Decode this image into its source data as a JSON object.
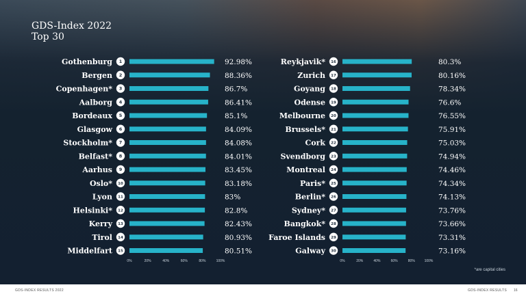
{
  "header": {
    "title": "GDS-Index 2022",
    "subtitle": "Top 30"
  },
  "footnote": "*are capital cities",
  "footer": {
    "left": "GDS-INDEX RESULTS 2022",
    "right": "GDS-INDEX RESULTS",
    "page": "16"
  },
  "colors": {
    "bar": "#27b3c9",
    "badge": "#ffffff",
    "badge_text": "#1c2b3a",
    "label": "#ffffff"
  },
  "chart_data": [
    {
      "type": "bar",
      "orientation": "horizontal",
      "xlim": [
        0,
        100
      ],
      "ticks": [
        "0%",
        "20%",
        "40%",
        "60%",
        "80%",
        "100%"
      ],
      "categories": [
        "Gothenburg",
        "Bergen",
        "Copenhagen*",
        "Aalborg",
        "Bordeaux",
        "Glasgow",
        "Stockholm*",
        "Belfast*",
        "Aarhus",
        "Oslo*",
        "Lyon",
        "Helsinki*",
        "Kerry",
        "Tirol",
        "Middelfart"
      ],
      "ranks": [
        "1",
        "2",
        "3",
        "4",
        "5",
        "6",
        "7",
        "8",
        "9",
        "10",
        "11",
        "12",
        "13",
        "14",
        "15"
      ],
      "values": [
        92.98,
        88.36,
        86.7,
        86.41,
        85.1,
        84.09,
        84.08,
        84.01,
        83.45,
        83.18,
        83,
        82.8,
        82.43,
        80.93,
        80.51
      ],
      "value_labels": [
        "92.98%",
        "88.36%",
        "86.7%",
        "86.41%",
        "85.1%",
        "84.09%",
        "84.08%",
        "84.01%",
        "83.45%",
        "83.18%",
        "83%",
        "82.8%",
        "82.43%",
        "80.93%",
        "80.51%"
      ]
    },
    {
      "type": "bar",
      "orientation": "horizontal",
      "xlim": [
        0,
        100
      ],
      "ticks": [
        "0%",
        "20%",
        "40%",
        "60%",
        "80%",
        "100%"
      ],
      "categories": [
        "Reykjavik*",
        "Zurich",
        "Goyang",
        "Odense",
        "Melbourne",
        "Brussels*",
        "Cork",
        "Svendborg",
        "Montreal",
        "Paris*",
        "Berlin*",
        "Sydney*",
        "Bangkok*",
        "Faroe Islands",
        "Galway"
      ],
      "ranks": [
        "16",
        "17",
        "18",
        "19",
        "20",
        "21",
        "22",
        "23",
        "24",
        "25",
        "26",
        "27",
        "28",
        "29",
        "30"
      ],
      "values": [
        80.3,
        80.16,
        78.34,
        76.6,
        76.55,
        75.91,
        75.03,
        74.94,
        74.46,
        74.34,
        74.13,
        73.76,
        73.66,
        73.31,
        73.16
      ],
      "value_labels": [
        "80.3%",
        "80.16%",
        "78.34%",
        "76.6%",
        "76.55%",
        "75.91%",
        "75.03%",
        "74.94%",
        "74.46%",
        "74.34%",
        "74.13%",
        "73.76%",
        "73.66%",
        "73.31%",
        "73.16%"
      ]
    }
  ]
}
